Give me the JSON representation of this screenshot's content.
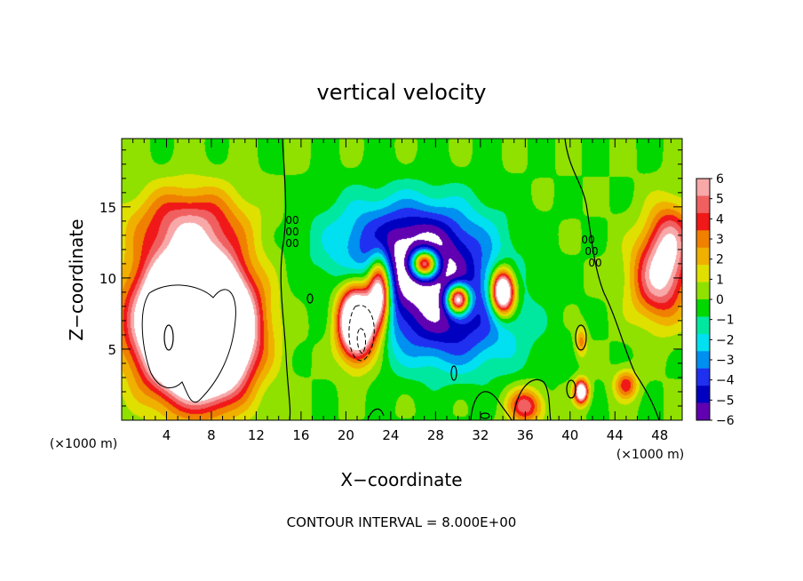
{
  "chart_data": {
    "type": "heatmap",
    "title": "vertical velocity",
    "xlabel": "X−coordinate",
    "ylabel": "Z−coordinate",
    "x_unit": "(×1000 m)",
    "xlim": [
      0,
      50
    ],
    "ylim": [
      0,
      19.8
    ],
    "x_ticks": [
      "4",
      "8",
      "12",
      "16",
      "20",
      "24",
      "28",
      "32",
      "36",
      "40",
      "44",
      "48"
    ],
    "x_tick_values": [
      4,
      8,
      12,
      16,
      20,
      24,
      28,
      32,
      36,
      40,
      44,
      48
    ],
    "y_ticks": [
      "5",
      "10",
      "15"
    ],
    "y_tick_values": [
      5,
      10,
      15
    ],
    "colorbar": {
      "labels": [
        "6",
        "5",
        "4",
        "3",
        "2",
        "1",
        "0",
        "−1",
        "−2",
        "−3",
        "−4",
        "−5",
        "−6"
      ],
      "values": [
        6,
        5,
        4,
        3,
        2,
        1,
        0,
        -1,
        -2,
        -3,
        -4,
        -5,
        -6
      ],
      "colors": [
        "#f8a8a8",
        "#f06060",
        "#f01818",
        "#f08000",
        "#f0b000",
        "#e0e000",
        "#90e000",
        "#00d800",
        "#00e8a0",
        "#00e0f0",
        "#0090f0",
        "#2030f0",
        "#0000c0",
        "#6000b0"
      ],
      "out_of_range_high": "#ffffff",
      "out_of_range_low": "#ffffff",
      "background": "#00e000"
    },
    "contour_interval": 8.0,
    "footer": "CONTOUR INTERVAL = 8.000E+00",
    "contour_labels": [
      "00",
      "00",
      "00"
    ],
    "features": [
      {
        "kind": "updraft",
        "x": 6,
        "z": 7,
        "sx": 4.5,
        "sz": 4.5,
        "amp": 18
      },
      {
        "kind": "updraft",
        "x": 8,
        "z": 6,
        "sx": 3.5,
        "sz": 4,
        "amp": 10
      },
      {
        "kind": "updraft",
        "x": 6,
        "z": 14,
        "sx": 5,
        "sz": 2.5,
        "amp": 4
      },
      {
        "kind": "updraft",
        "x": 48,
        "z": 10,
        "sx": 2.5,
        "sz": 3,
        "amp": 6
      },
      {
        "kind": "updraft",
        "x": 49,
        "z": 13,
        "sx": 2,
        "sz": 2.5,
        "amp": 4
      },
      {
        "kind": "updraft",
        "x": 36,
        "z": 1,
        "sx": 1.5,
        "sz": 1.2,
        "amp": 5
      },
      {
        "kind": "updraft",
        "x": 45,
        "z": 2.5,
        "sx": 1,
        "sz": 1,
        "amp": 4
      },
      {
        "kind": "downdraft",
        "x": 27,
        "z": 10,
        "sx": 6,
        "sz": 4,
        "amp": -6
      },
      {
        "kind": "downdraft",
        "x": 25,
        "z": 13,
        "sx": 7,
        "sz": 3,
        "amp": -3
      },
      {
        "kind": "downdraft",
        "x": 30,
        "z": 6,
        "sx": 6,
        "sz": 3,
        "amp": -3
      },
      {
        "kind": "updraft",
        "x": 21,
        "z": 7,
        "sx": 1.6,
        "sz": 2.5,
        "amp": 14
      },
      {
        "kind": "updraft",
        "x": 23,
        "z": 9,
        "sx": 1,
        "sz": 2.5,
        "amp": 10
      },
      {
        "kind": "updraft",
        "x": 27,
        "z": 11,
        "sx": 1.2,
        "sz": 1,
        "amp": 12
      },
      {
        "kind": "updraft",
        "x": 30,
        "z": 8.5,
        "sx": 1,
        "sz": 1,
        "amp": 12
      },
      {
        "kind": "updraft",
        "x": 34,
        "z": 9,
        "sx": 1,
        "sz": 1.5,
        "amp": 12
      },
      {
        "kind": "updraft",
        "x": 41,
        "z": 2,
        "sx": 0.6,
        "sz": 0.8,
        "amp": 9
      },
      {
        "kind": "updraft",
        "x": 41,
        "z": 5.5,
        "sx": 0.5,
        "sz": 1,
        "amp": 3
      }
    ]
  }
}
